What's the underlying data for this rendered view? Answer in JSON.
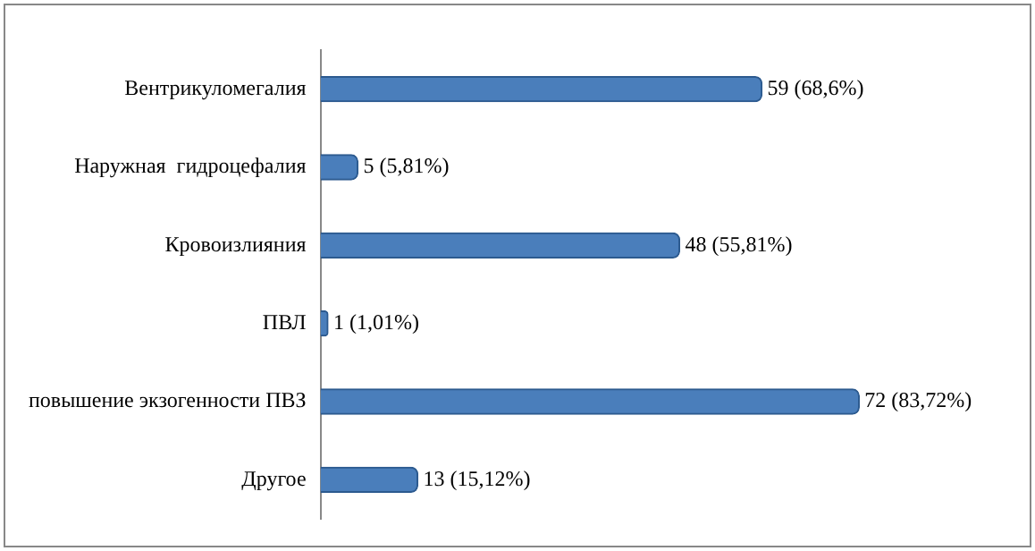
{
  "chart_data": {
    "type": "bar",
    "orientation": "horizontal",
    "categories": [
      "Вентрикуломегалия",
      "Наружная  гидроцефалия",
      "Кровоизлияния",
      "ПВЛ",
      "повышение экзогенности ПВЗ",
      "Другое"
    ],
    "values": [
      59,
      5,
      48,
      1,
      72,
      13
    ],
    "value_labels": [
      "59 (68,6%)",
      "5 (5,81%)",
      "48 (55,81%)",
      "1 (1,01%)",
      "72 (83,72%)",
      "13 (15,12%)"
    ],
    "color": "#4a7ebb",
    "tick_labels": "y",
    "grid": false,
    "legend": false
  }
}
